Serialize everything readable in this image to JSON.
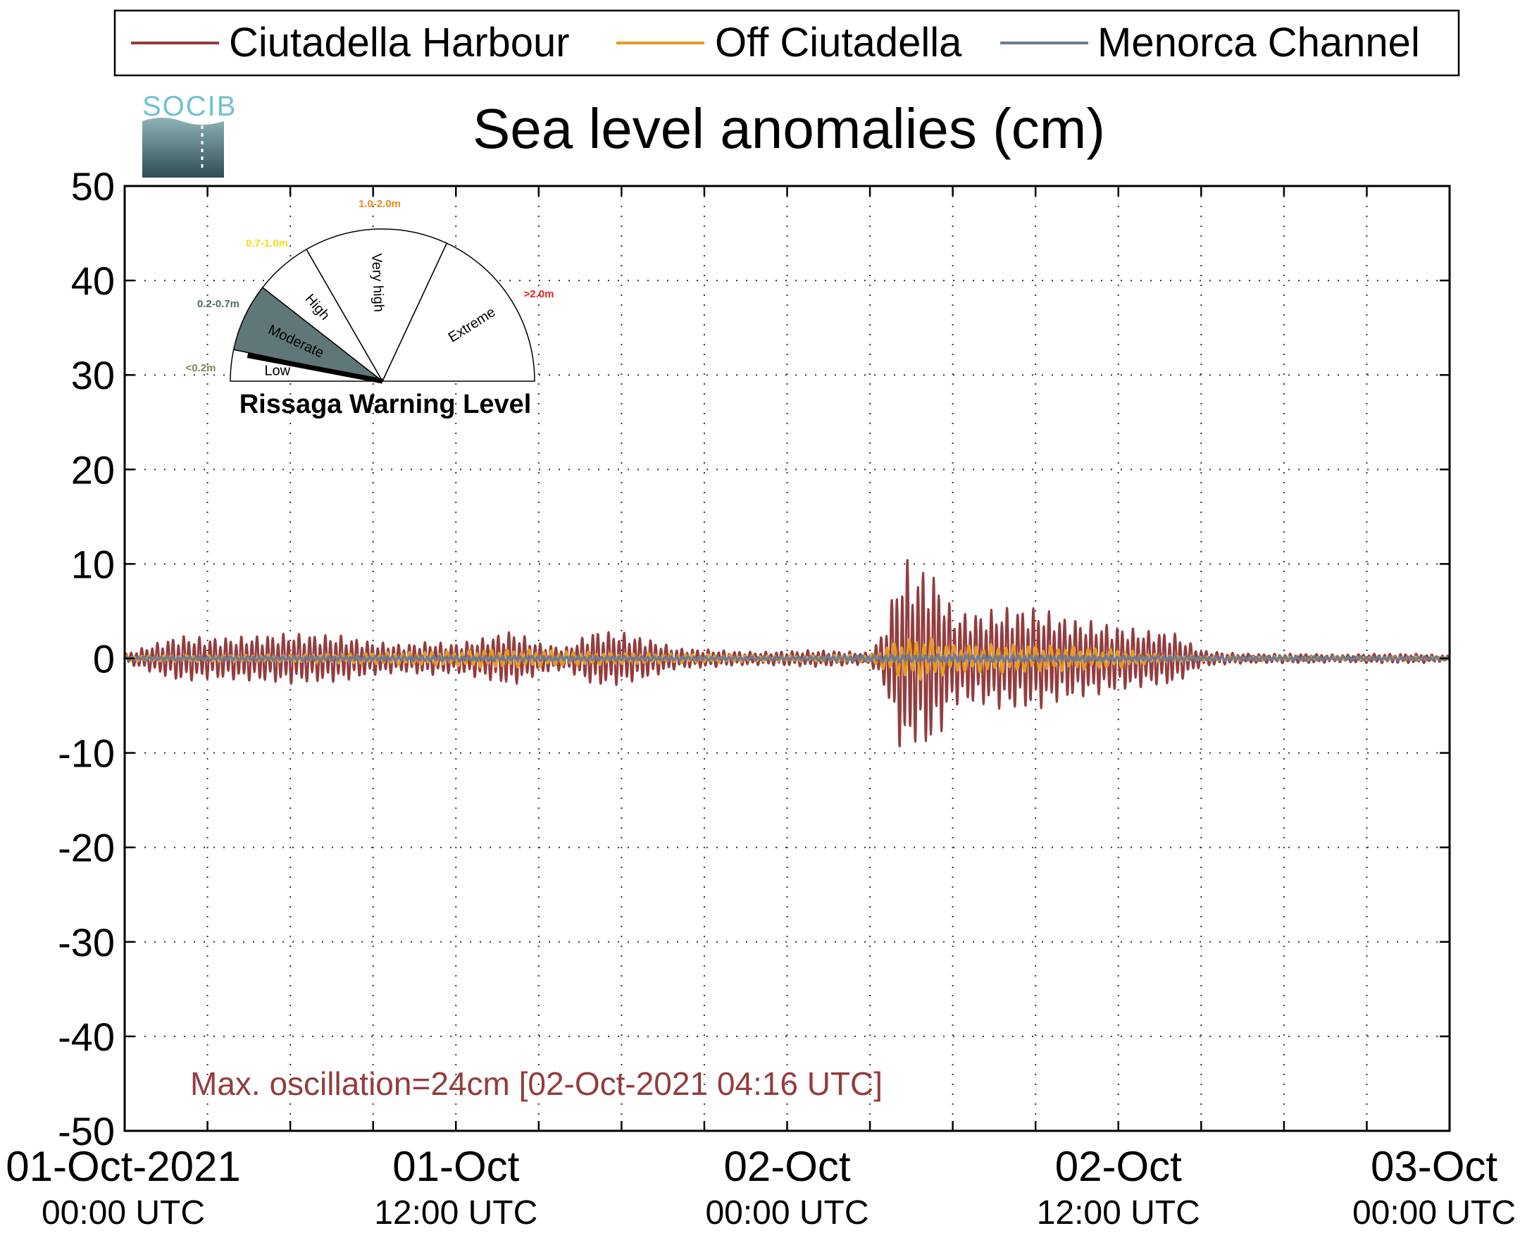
{
  "chart_data": {
    "type": "line",
    "title": "Sea level anomalies (cm)",
    "logo_text": "SOCIB",
    "ylim": [
      -50,
      50
    ],
    "yticks": [
      50,
      40,
      30,
      20,
      10,
      0,
      -10,
      -20,
      -30,
      -40,
      -50
    ],
    "ytick_labels": [
      "50",
      "40",
      "30",
      "20",
      "10",
      "0",
      "-10",
      "-20",
      "-30",
      "-40",
      "-50"
    ],
    "x_range_hours": [
      0,
      48
    ],
    "xtick_hours": [
      0,
      3,
      6,
      9,
      12,
      15,
      18,
      21,
      24,
      27,
      30,
      33,
      36,
      39,
      42,
      45,
      48
    ],
    "xtick_labels": [
      {
        "hour": 0,
        "line1": "01-Oct-2021",
        "line2": "00:00 UTC"
      },
      {
        "hour": 12,
        "line1": "01-Oct",
        "line2": "12:00 UTC"
      },
      {
        "hour": 24,
        "line1": "02-Oct",
        "line2": "00:00 UTC"
      },
      {
        "hour": 36,
        "line1": "02-Oct",
        "line2": "12:00 UTC"
      },
      {
        "hour": 48,
        "line1": "03-Oct",
        "line2": "00:00 UTC"
      }
    ],
    "grid": true,
    "legend_position": "top",
    "annotation": "Max. oscillation=24cm [02-Oct-2021 04:16 UTC]",
    "series": [
      {
        "name": "Ciutadella Harbour",
        "color": "#943c3e",
        "envelope_hours": [
          0,
          1,
          2,
          3,
          4,
          5,
          6,
          7,
          8,
          9,
          10,
          11,
          12,
          13,
          14,
          15,
          16,
          17,
          18,
          19,
          20,
          21,
          22,
          23,
          24,
          25,
          26,
          27,
          27.5,
          28,
          28.3,
          28.6,
          29,
          29.5,
          30,
          31,
          32,
          33,
          34,
          35,
          36,
          37,
          38,
          39,
          40,
          41,
          42,
          43,
          44,
          45,
          46,
          47,
          48
        ],
        "envelope_cm": [
          0.5,
          1.5,
          2.5,
          2.2,
          2.3,
          2.5,
          2.7,
          2.6,
          2.4,
          1.8,
          1.5,
          1.8,
          1.6,
          2.2,
          3.0,
          1.7,
          1.2,
          3.0,
          2.8,
          2.1,
          1.1,
          1.0,
          0.8,
          0.7,
          0.8,
          0.9,
          0.8,
          0.6,
          3.0,
          9.0,
          11.0,
          9.0,
          10.0,
          8.5,
          5.0,
          5.0,
          5.5,
          5.5,
          4.5,
          4.0,
          3.5,
          3.0,
          2.8,
          0.9,
          0.6,
          0.5,
          0.5,
          0.5,
          0.4,
          0.5,
          0.5,
          0.5,
          0.3
        ]
      },
      {
        "name": "Off Ciutadella",
        "color": "#e69a28",
        "envelope_hours": [
          0,
          6,
          12,
          13,
          15,
          18,
          24,
          27,
          28,
          29,
          30,
          32,
          34,
          36,
          37,
          38,
          42,
          48
        ],
        "envelope_cm": [
          0.3,
          0.4,
          0.8,
          1.0,
          0.9,
          0.6,
          0.3,
          0.4,
          2.0,
          2.3,
          1.5,
          1.5,
          1.3,
          1.0,
          0.6,
          0.3,
          0.2,
          0.2
        ]
      },
      {
        "name": "Menorca Channel",
        "color": "#6d7b93",
        "envelope_hours": [
          0,
          12,
          24,
          28,
          30,
          36,
          48
        ],
        "envelope_cm": [
          0.2,
          0.3,
          0.2,
          0.4,
          0.4,
          0.3,
          0.2
        ]
      }
    ]
  },
  "inset": {
    "title": "Rissaga Warning Level",
    "current_level_fraction": 0.06,
    "levels": [
      {
        "name": "Low",
        "range": "<0.2m",
        "fill": "#ffffff",
        "range_color": "#7b8b56"
      },
      {
        "name": "Moderate",
        "range": "0.2-0.7m",
        "fill": "#5f7778",
        "range_color": "#4e6a6b"
      },
      {
        "name": "High",
        "range": "0.7-1.0m",
        "fill": "#ffffff",
        "range_color": "#f2de1a"
      },
      {
        "name": "Very high",
        "range": "1.0-2.0m",
        "fill": "#ffffff",
        "range_color": "#ee8a1a"
      },
      {
        "name": "Extreme",
        "range": ">2.0m",
        "fill": "#ffffff",
        "range_color": "#e8211b"
      }
    ]
  }
}
